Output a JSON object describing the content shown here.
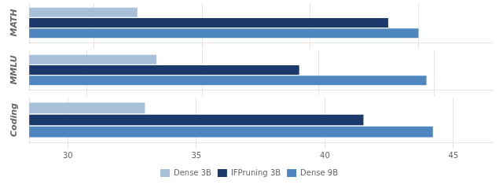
{
  "chart_data": [
    {
      "type": "bar",
      "orientation": "horizontal",
      "ylabel": "MATH",
      "categories": [
        null
      ],
      "series": [
        {
          "name": "Dense 3B",
          "color": "#a8bfd8",
          "values": [
            31.0
          ]
        },
        {
          "name": "IFPruning 3B",
          "color": "#1b3a6b",
          "values": [
            36.8
          ]
        },
        {
          "name": "Dense 9B",
          "color": "#4e86c0",
          "values": [
            37.5
          ]
        }
      ],
      "xlim": [
        28.5,
        39.2
      ],
      "xticks": [
        30,
        32.5,
        35,
        37.5
      ],
      "grid": true,
      "tick_labels": false
    },
    {
      "type": "bar",
      "orientation": "horizontal",
      "ylabel": "MMLU",
      "categories": [
        null
      ],
      "series": [
        {
          "name": "Dense 3B",
          "color": "#a8bfd8",
          "values": [
            60.8
          ]
        },
        {
          "name": "IFPruning 3B",
          "color": "#1b3a6b",
          "values": [
            64.5
          ]
        },
        {
          "name": "Dense 9B",
          "color": "#4e86c0",
          "values": [
            67.8
          ]
        }
      ],
      "xlim": [
        57.5,
        69.5
      ],
      "xticks": [
        59,
        62,
        65,
        68
      ],
      "grid": true,
      "tick_labels": false
    },
    {
      "type": "bar",
      "orientation": "horizontal",
      "ylabel": "Coding",
      "categories": [
        null
      ],
      "series": [
        {
          "name": "Dense 3B",
          "color": "#a8bfd8",
          "values": [
            33.0
          ]
        },
        {
          "name": "IFPruning 3B",
          "color": "#1b3a6b",
          "values": [
            41.5
          ]
        },
        {
          "name": "Dense 9B",
          "color": "#4e86c0",
          "values": [
            44.2
          ]
        }
      ],
      "xlim": [
        28.5,
        46.5
      ],
      "xticks": [
        30,
        35,
        40,
        45
      ],
      "grid": true,
      "tick_labels": "x",
      "legend": "bottom"
    }
  ]
}
